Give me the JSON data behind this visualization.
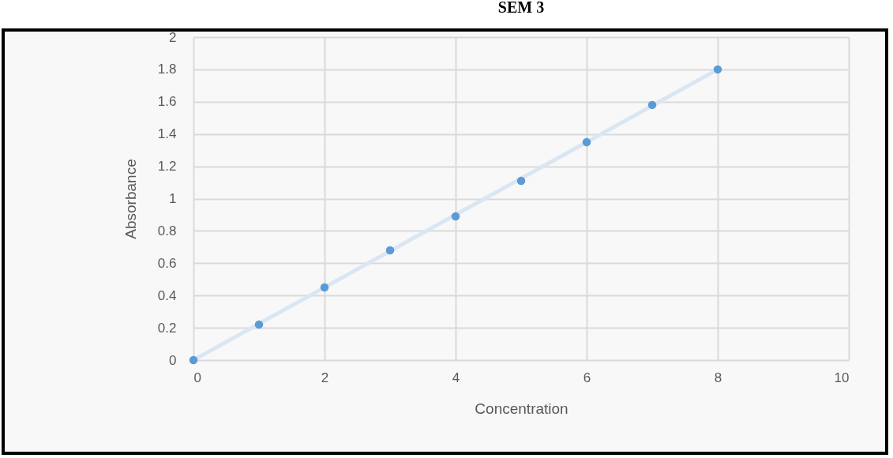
{
  "chart_data": {
    "type": "scatter",
    "title": "SEM 3",
    "xlabel": "Concentration",
    "ylabel": "Absorbance",
    "x": [
      0,
      1,
      2,
      3,
      4,
      5,
      6,
      7,
      8
    ],
    "series": [
      {
        "type": "line",
        "color": "#dae6f3",
        "x": [
          0,
          8
        ],
        "values": [
          0,
          1.8
        ]
      },
      {
        "color": "#5b9bd5",
        "marker": "circle",
        "values": [
          0,
          0.22,
          0.45,
          0.68,
          0.89,
          1.11,
          1.35,
          1.58,
          1.8
        ]
      }
    ],
    "xlim": [
      0,
      10
    ],
    "ylim": [
      0,
      2
    ],
    "xticks": [
      0,
      2,
      4,
      6,
      8,
      10
    ],
    "yticks": [
      0,
      0.2,
      0.4,
      0.6,
      0.8,
      1,
      1.2,
      1.4,
      1.6,
      1.8,
      2
    ],
    "grid": true
  }
}
